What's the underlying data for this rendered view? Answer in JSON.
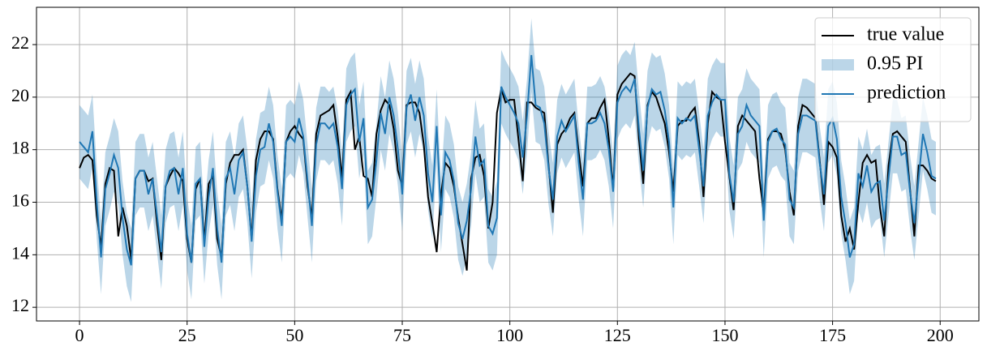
{
  "chart_data": {
    "type": "line",
    "x": [
      0,
      1,
      2,
      3,
      4,
      5,
      6,
      7,
      8,
      9,
      10,
      11,
      12,
      13,
      14,
      15,
      16,
      17,
      18,
      19,
      20,
      21,
      22,
      23,
      24,
      25,
      26,
      27,
      28,
      29,
      30,
      31,
      32,
      33,
      34,
      35,
      36,
      37,
      38,
      39,
      40,
      41,
      42,
      43,
      44,
      45,
      46,
      47,
      48,
      49,
      50,
      51,
      52,
      53,
      54,
      55,
      56,
      57,
      58,
      59,
      60,
      61,
      62,
      63,
      64,
      65,
      66,
      67,
      68,
      69,
      70,
      71,
      72,
      73,
      74,
      75,
      76,
      77,
      78,
      79,
      80,
      81,
      82,
      83,
      84,
      85,
      86,
      87,
      88,
      89,
      90,
      91,
      92,
      93,
      94,
      95,
      96,
      97,
      98,
      99,
      100,
      101,
      102,
      103,
      104,
      105,
      106,
      107,
      108,
      109,
      110,
      111,
      112,
      113,
      114,
      115,
      116,
      117,
      118,
      119,
      120,
      121,
      122,
      123,
      124,
      125,
      126,
      127,
      128,
      129,
      130,
      131,
      132,
      133,
      134,
      135,
      136,
      137,
      138,
      139,
      140,
      141,
      142,
      143,
      144,
      145,
      146,
      147,
      148,
      149,
      150,
      151,
      152,
      153,
      154,
      155,
      156,
      157,
      158,
      159,
      160,
      161,
      162,
      163,
      164,
      165,
      166,
      167,
      168,
      169,
      170,
      171,
      172,
      173,
      174,
      175,
      176,
      177,
      178,
      179,
      180,
      181,
      182,
      183,
      184,
      185,
      186,
      187,
      188,
      189,
      190,
      191,
      192,
      193,
      194,
      195,
      196,
      197,
      198,
      199
    ],
    "series": [
      {
        "name": "true value",
        "color": "#000000",
        "values": [
          17.3,
          17.7,
          17.8,
          17.6,
          15.5,
          14.3,
          16.7,
          17.3,
          17.2,
          14.7,
          15.8,
          15.1,
          13.8,
          16.9,
          17.2,
          17.2,
          16.8,
          16.9,
          15.2,
          13.8,
          16.6,
          17.0,
          17.3,
          17.1,
          16.8,
          14.6,
          13.7,
          16.5,
          16.9,
          14.5,
          16.7,
          17.0,
          14.6,
          13.9,
          16.7,
          17.5,
          17.8,
          17.8,
          18.0,
          16.6,
          14.6,
          17.6,
          18.4,
          18.7,
          18.7,
          18.4,
          16.5,
          15.3,
          18.3,
          18.7,
          18.9,
          18.6,
          18.4,
          16.6,
          15.4,
          18.6,
          19.3,
          19.4,
          19.5,
          19.7,
          18.5,
          16.9,
          19.9,
          20.2,
          18.0,
          18.5,
          17.0,
          16.9,
          16.2,
          18.6,
          19.5,
          19.9,
          19.7,
          18.8,
          17.2,
          16.6,
          19.7,
          19.8,
          19.8,
          19.4,
          18.2,
          16.2,
          15.2,
          14.1,
          16.3,
          17.5,
          17.3,
          16.6,
          15.4,
          14.4,
          13.4,
          16.9,
          17.7,
          17.8,
          17.0,
          15.0,
          16.0,
          19.4,
          20.3,
          19.8,
          19.9,
          19.9,
          18.4,
          16.8,
          19.8,
          19.8,
          19.6,
          19.5,
          19.4,
          17.4,
          15.6,
          18.2,
          18.6,
          18.8,
          19.2,
          19.4,
          17.9,
          16.6,
          19.0,
          19.2,
          19.2,
          19.6,
          19.9,
          18.4,
          16.5,
          20.1,
          20.5,
          20.7,
          20.9,
          20.8,
          18.4,
          16.7,
          19.7,
          20.2,
          20.0,
          19.5,
          19.0,
          17.9,
          16.4,
          18.9,
          19.1,
          19.1,
          19.4,
          19.6,
          18.3,
          16.2,
          19.0,
          20.2,
          20.0,
          19.9,
          18.3,
          17.0,
          15.7,
          18.9,
          19.3,
          19.1,
          18.9,
          18.7,
          16.9,
          15.6,
          18.4,
          18.7,
          18.7,
          18.6,
          18.0,
          16.4,
          15.5,
          18.9,
          19.7,
          19.6,
          19.4,
          19.2,
          17.6,
          15.9,
          18.3,
          18.1,
          17.7,
          15.5,
          14.5,
          15.0,
          14.2,
          16.0,
          17.5,
          17.8,
          17.5,
          17.6,
          15.8,
          14.7,
          17.4,
          18.6,
          18.7,
          18.5,
          18.3,
          16.5,
          14.7,
          17.4,
          17.4,
          17.2,
          16.9,
          16.8
        ]
      },
      {
        "name": "prediction",
        "color": "#1f77b4",
        "values": [
          18.3,
          18.1,
          17.9,
          18.7,
          16.0,
          13.9,
          16.5,
          17.1,
          17.8,
          17.3,
          15.4,
          14.2,
          13.6,
          16.9,
          17.2,
          17.2,
          16.3,
          16.9,
          15.5,
          14.1,
          16.6,
          17.2,
          17.3,
          16.3,
          17.3,
          14.8,
          13.7,
          16.7,
          16.9,
          14.3,
          16.2,
          17.3,
          15.0,
          13.7,
          16.9,
          17.3,
          16.3,
          17.6,
          17.9,
          16.6,
          14.5,
          17.0,
          18.0,
          18.1,
          19.0,
          18.3,
          16.4,
          15.1,
          18.3,
          18.5,
          18.3,
          19.2,
          18.5,
          16.8,
          15.1,
          18.2,
          19.0,
          19.0,
          18.8,
          19.0,
          18.1,
          16.5,
          19.7,
          20.1,
          20.3,
          18.3,
          19.2,
          15.8,
          16.1,
          17.6,
          19.4,
          18.6,
          20.0,
          19.3,
          18.0,
          16.3,
          19.6,
          20.1,
          19.1,
          20.0,
          19.3,
          17.1,
          16.0,
          18.9,
          15.5,
          17.9,
          17.6,
          16.8,
          15.2,
          14.6,
          15.3,
          16.5,
          18.5,
          17.4,
          17.6,
          15.1,
          14.8,
          15.4,
          20.4,
          20.0,
          19.7,
          19.4,
          19.0,
          17.7,
          19.3,
          21.6,
          19.7,
          19.6,
          19.0,
          17.3,
          16.1,
          18.5,
          19.1,
          18.7,
          19.0,
          19.3,
          17.5,
          16.1,
          19.0,
          19.0,
          19.1,
          19.4,
          19.0,
          18.0,
          16.4,
          19.8,
          20.2,
          20.4,
          20.2,
          20.7,
          18.8,
          17.2,
          19.6,
          20.3,
          20.1,
          20.2,
          19.5,
          18.3,
          15.8,
          19.2,
          19.0,
          19.2,
          19.1,
          19.3,
          18.0,
          16.6,
          19.3,
          19.8,
          20.1,
          19.9,
          19.9,
          17.1,
          16.0,
          18.6,
          18.9,
          19.7,
          19.3,
          19.1,
          18.9,
          15.3,
          18.3,
          18.7,
          18.8,
          18.4,
          18.2,
          16.1,
          15.8,
          18.6,
          19.3,
          19.3,
          19.2,
          19.1,
          17.5,
          16.3,
          18.9,
          19.2,
          18.4,
          16.2,
          15.2,
          13.9,
          14.4,
          17.1,
          16.6,
          17.4,
          16.4,
          16.7,
          16.8,
          15.3,
          16.9,
          18.5,
          18.5,
          17.8,
          17.9,
          16.4,
          15.2,
          16.9,
          18.6,
          17.9,
          17.0,
          16.9
        ]
      }
    ],
    "band": {
      "name": "0.95 PI",
      "color": "#1f77b4",
      "opacity": 0.3,
      "lower": [
        16.9,
        16.7,
        16.5,
        17.3,
        14.6,
        12.5,
        15.1,
        15.7,
        16.4,
        15.9,
        14.0,
        12.8,
        12.2,
        15.5,
        15.8,
        15.8,
        14.9,
        15.5,
        14.1,
        12.7,
        15.2,
        15.8,
        15.9,
        14.9,
        15.9,
        13.4,
        12.3,
        15.3,
        15.5,
        12.9,
        14.8,
        15.9,
        13.6,
        12.3,
        15.5,
        15.9,
        14.9,
        16.2,
        16.5,
        15.2,
        13.1,
        15.6,
        16.6,
        16.7,
        17.6,
        16.9,
        15.0,
        13.7,
        16.9,
        17.1,
        16.9,
        17.8,
        17.1,
        15.4,
        13.7,
        16.8,
        17.6,
        17.6,
        17.4,
        17.6,
        16.7,
        15.1,
        18.3,
        18.7,
        18.9,
        16.9,
        17.8,
        14.4,
        14.7,
        16.2,
        18.0,
        17.2,
        18.6,
        17.9,
        16.6,
        14.9,
        18.2,
        18.7,
        17.7,
        18.6,
        17.9,
        15.7,
        14.6,
        17.5,
        14.1,
        16.5,
        16.2,
        15.4,
        13.8,
        13.2,
        13.9,
        15.1,
        17.1,
        16.0,
        16.2,
        13.7,
        13.4,
        14.0,
        19.0,
        18.6,
        18.3,
        18.0,
        17.6,
        16.3,
        17.9,
        20.2,
        18.3,
        18.2,
        17.6,
        15.9,
        14.7,
        17.1,
        17.7,
        17.3,
        17.6,
        17.9,
        16.1,
        14.7,
        17.6,
        17.6,
        17.7,
        18.0,
        17.6,
        16.6,
        15.0,
        18.4,
        18.8,
        19.0,
        18.8,
        19.3,
        17.4,
        15.8,
        18.2,
        18.9,
        18.7,
        18.8,
        18.1,
        16.9,
        14.4,
        17.8,
        17.6,
        17.8,
        17.7,
        17.9,
        16.6,
        15.2,
        17.9,
        18.4,
        18.7,
        18.5,
        18.5,
        15.7,
        14.6,
        17.2,
        17.5,
        18.3,
        17.9,
        17.7,
        17.5,
        13.9,
        16.9,
        17.3,
        17.4,
        17.0,
        16.8,
        14.7,
        14.4,
        17.2,
        17.9,
        17.9,
        17.8,
        17.7,
        16.1,
        14.9,
        17.5,
        17.8,
        17.0,
        14.8,
        13.8,
        12.5,
        13.0,
        15.7,
        15.2,
        16.0,
        15.0,
        15.3,
        15.4,
        13.9,
        15.5,
        17.1,
        17.1,
        16.4,
        16.5,
        15.0,
        13.8,
        15.5,
        17.2,
        16.5,
        15.6,
        15.5
      ],
      "upper": [
        19.7,
        19.5,
        19.3,
        20.1,
        17.4,
        15.3,
        17.9,
        18.5,
        19.2,
        18.7,
        16.8,
        15.6,
        15.0,
        18.3,
        18.6,
        18.6,
        17.7,
        18.3,
        16.9,
        15.5,
        18.0,
        18.6,
        18.7,
        17.7,
        18.7,
        16.2,
        15.1,
        18.1,
        18.3,
        15.7,
        17.6,
        18.7,
        16.4,
        15.1,
        18.3,
        18.7,
        17.7,
        19.0,
        19.3,
        18.0,
        15.9,
        18.4,
        19.4,
        19.5,
        20.4,
        19.7,
        17.8,
        16.5,
        19.7,
        19.9,
        19.7,
        20.6,
        19.9,
        18.2,
        16.5,
        19.6,
        20.4,
        20.4,
        20.2,
        20.4,
        19.5,
        17.9,
        21.1,
        21.5,
        21.7,
        19.7,
        20.6,
        17.2,
        17.5,
        19.0,
        20.8,
        20.0,
        21.4,
        20.7,
        19.4,
        17.7,
        21.0,
        21.5,
        20.5,
        21.4,
        20.7,
        18.5,
        17.4,
        20.3,
        16.9,
        19.3,
        19.0,
        18.2,
        16.6,
        16.0,
        16.7,
        17.9,
        19.9,
        18.8,
        19.0,
        16.5,
        16.2,
        16.8,
        21.8,
        21.4,
        21.1,
        20.8,
        20.4,
        19.1,
        20.7,
        23.0,
        21.1,
        21.0,
        20.4,
        18.7,
        17.5,
        19.9,
        20.5,
        20.1,
        20.4,
        20.7,
        18.9,
        17.5,
        20.4,
        20.4,
        20.5,
        20.8,
        20.4,
        19.4,
        17.8,
        21.2,
        21.6,
        21.8,
        21.6,
        22.1,
        20.2,
        18.6,
        21.0,
        21.7,
        21.5,
        21.6,
        20.9,
        19.7,
        17.2,
        20.6,
        20.4,
        20.6,
        20.5,
        20.7,
        19.4,
        18.0,
        20.7,
        21.2,
        21.5,
        21.3,
        21.3,
        18.5,
        17.4,
        20.0,
        20.3,
        21.1,
        20.7,
        20.5,
        20.3,
        16.7,
        19.7,
        20.1,
        20.2,
        19.8,
        19.6,
        17.5,
        17.2,
        20.0,
        20.7,
        20.7,
        20.6,
        20.5,
        18.9,
        17.7,
        20.3,
        20.6,
        19.8,
        17.6,
        16.6,
        15.3,
        15.8,
        18.5,
        18.0,
        18.8,
        17.8,
        18.1,
        18.2,
        16.7,
        18.3,
        19.9,
        19.9,
        19.2,
        19.3,
        17.8,
        16.6,
        18.3,
        20.0,
        19.3,
        18.4,
        18.3
      ]
    },
    "xlim": [
      -10,
      209
    ],
    "ylim": [
      11.48,
      23.42
    ],
    "xticks": [
      0,
      25,
      50,
      75,
      100,
      125,
      150,
      175,
      200
    ],
    "yticks": [
      12,
      14,
      16,
      18,
      20,
      22
    ],
    "grid": true,
    "legend": "upper right"
  }
}
